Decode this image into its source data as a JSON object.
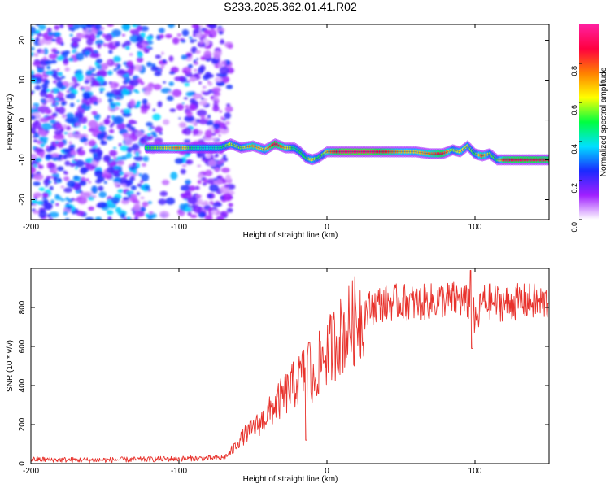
{
  "title": "S233.2025.362.01.41.R02",
  "chart_data": [
    {
      "type": "heatmap",
      "name": "spectrogram",
      "xlabel": "Height of straight line (km)",
      "ylabel": "Frequency (Hz)",
      "xlim": [
        -200,
        150
      ],
      "ylim": [
        -25,
        24
      ],
      "xticks": [
        -200,
        -100,
        0,
        100
      ],
      "yticks": [
        -20,
        -10,
        0,
        10,
        20
      ],
      "colorbar": {
        "label": "Normalized spectral amplitude",
        "range": [
          0,
          1
        ],
        "ticks": [
          "0.0",
          "0.2",
          "0.4",
          "0.6",
          "0.8"
        ],
        "tick_values": [
          0,
          0.2,
          0.4,
          0.6,
          0.8
        ],
        "colors": [
          "#ffffff",
          "#a020ff",
          "#1a2aff",
          "#00e0ff",
          "#00ff40",
          "#ffff00",
          "#ff8000",
          "#ff0040",
          "#ff20a0"
        ]
      },
      "noise_region_km": [
        -200,
        -75
      ],
      "signal_track": {
        "x": [
          -122,
          -110,
          -100,
          -90,
          -80,
          -72,
          -65,
          -58,
          -50,
          -42,
          -35,
          -28,
          -22,
          -18,
          -14,
          -10,
          -6,
          -2,
          0,
          10,
          20,
          30,
          40,
          50,
          60,
          70,
          78,
          85,
          90,
          95,
          100,
          105,
          110,
          115,
          120,
          130,
          140,
          150
        ],
        "freq_hz": [
          -7,
          -7,
          -7,
          -7,
          -7,
          -7,
          -6,
          -7,
          -6.5,
          -7.5,
          -6,
          -7,
          -7,
          -8,
          -9.5,
          -10,
          -9.5,
          -8.5,
          -8,
          -8,
          -8,
          -8,
          -8,
          -8,
          -8,
          -8.5,
          -8.5,
          -7.5,
          -8,
          -6.5,
          -8.5,
          -9,
          -8.5,
          -10,
          -10,
          -10,
          -10,
          -10
        ],
        "amplitude": [
          0.5,
          0.6,
          0.75,
          0.45,
          0.4,
          0.45,
          0.6,
          0.55,
          0.75,
          0.6,
          0.9,
          0.7,
          0.45,
          0.5,
          0.5,
          0.65,
          0.5,
          0.55,
          0.7,
          0.95,
          0.95,
          0.95,
          0.85,
          0.7,
          0.65,
          0.75,
          0.9,
          0.55,
          0.65,
          0.6,
          0.5,
          0.8,
          0.55,
          0.5,
          0.85,
          0.9,
          0.9,
          0.85
        ]
      }
    },
    {
      "type": "line",
      "name": "snr",
      "xlabel": "Height of straight line (km)",
      "ylabel": "SNR (10 * v/v)",
      "xlim": [
        -200,
        150
      ],
      "ylim": [
        0,
        1000
      ],
      "xticks": [
        -200,
        -100,
        0,
        100
      ],
      "yticks": [
        0,
        200,
        400,
        600,
        800
      ],
      "color": "#e8322c",
      "series": {
        "x": [
          -200,
          -180,
          -160,
          -140,
          -120,
          -100,
          -80,
          -70,
          -65,
          -60,
          -55,
          -50,
          -45,
          -40,
          -35,
          -30,
          -25,
          -20,
          -15,
          -12,
          -10,
          -5,
          0,
          5,
          10,
          15,
          20,
          25,
          30,
          35,
          40,
          50,
          60,
          70,
          80,
          90,
          95,
          98,
          100,
          105,
          110,
          120,
          130,
          140,
          145,
          150
        ],
        "y": [
          22,
          20,
          18,
          20,
          22,
          25,
          28,
          30,
          55,
          110,
          150,
          180,
          210,
          250,
          300,
          340,
          380,
          420,
          470,
          520,
          380,
          520,
          570,
          620,
          660,
          700,
          740,
          780,
          800,
          820,
          820,
          830,
          820,
          830,
          840,
          840,
          820,
          850,
          700,
          830,
          830,
          820,
          830,
          830,
          820,
          830
        ]
      },
      "spikes": [
        {
          "x": -12,
          "y": 620
        },
        {
          "x": -14,
          "y": 120
        },
        {
          "x": 97,
          "y": 990
        },
        {
          "x": 98,
          "y": 590
        }
      ]
    }
  ]
}
